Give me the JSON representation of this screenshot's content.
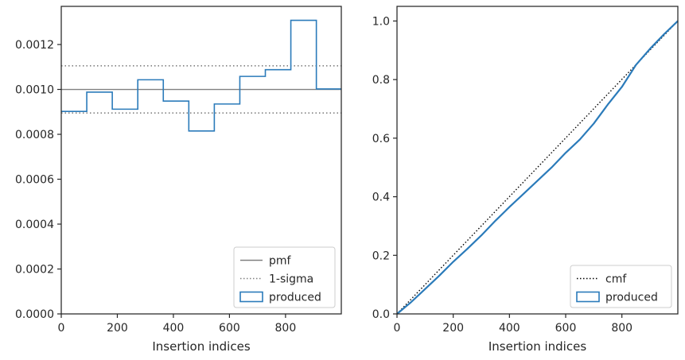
{
  "chart_data": [
    {
      "type": "histogram",
      "xlabel": "Insertion indices",
      "ylabel": "",
      "xlim": [
        0,
        999
      ],
      "ylim": [
        0,
        0.00137
      ],
      "xticks": [
        0,
        200,
        400,
        600,
        800
      ],
      "yticks": [
        0.0,
        0.0002,
        0.0004,
        0.0006,
        0.0008,
        0.001,
        0.0012
      ],
      "ytick_labels": [
        "0.0000",
        "0.0002",
        "0.0004",
        "0.0006",
        "0.0008",
        "0.0010",
        "0.0012"
      ],
      "grid": false,
      "legend_position": "bottom-right",
      "bin_edges": [
        0,
        91,
        182,
        273,
        364,
        455,
        546,
        637,
        728,
        819,
        910,
        999
      ],
      "values": [
        0.000902,
        0.000988,
        0.000912,
        0.001043,
        0.000948,
        0.000815,
        0.000935,
        0.001058,
        0.001088,
        0.001308,
        0.001002
      ],
      "reference_lines": {
        "pmf": 0.001,
        "sigma_lower": 0.000895,
        "sigma_upper": 0.001105
      },
      "series": [
        {
          "name": "pmf",
          "style": "solid",
          "color": "#808080"
        },
        {
          "name": "1-sigma",
          "style": "dotted",
          "color": "#808080"
        },
        {
          "name": "produced",
          "style": "step",
          "color": "#2b7bba"
        }
      ]
    },
    {
      "type": "line",
      "xlabel": "Insertion indices",
      "ylabel": "",
      "xlim": [
        0,
        999
      ],
      "ylim": [
        0,
        1.05
      ],
      "xticks": [
        0,
        200,
        400,
        600,
        800
      ],
      "yticks": [
        0.0,
        0.2,
        0.4,
        0.6,
        0.8,
        1.0
      ],
      "ytick_labels": [
        "0.0",
        "0.2",
        "0.4",
        "0.6",
        "0.8",
        "1.0"
      ],
      "grid": false,
      "legend_position": "bottom-right",
      "series": [
        {
          "name": "cmf",
          "style": "dotted",
          "color": "#000000",
          "x": [
            0,
            999
          ],
          "y": [
            0.0,
            1.0
          ]
        },
        {
          "name": "produced",
          "style": "solid",
          "color": "#2b7bba",
          "x": [
            0,
            50,
            100,
            150,
            200,
            250,
            300,
            350,
            400,
            450,
            500,
            550,
            600,
            650,
            700,
            750,
            800,
            850,
            900,
            950,
            999
          ],
          "y": [
            0.0,
            0.04,
            0.085,
            0.13,
            0.178,
            0.222,
            0.268,
            0.318,
            0.365,
            0.41,
            0.455,
            0.5,
            0.55,
            0.595,
            0.65,
            0.715,
            0.775,
            0.85,
            0.905,
            0.955,
            1.0
          ]
        }
      ]
    }
  ]
}
